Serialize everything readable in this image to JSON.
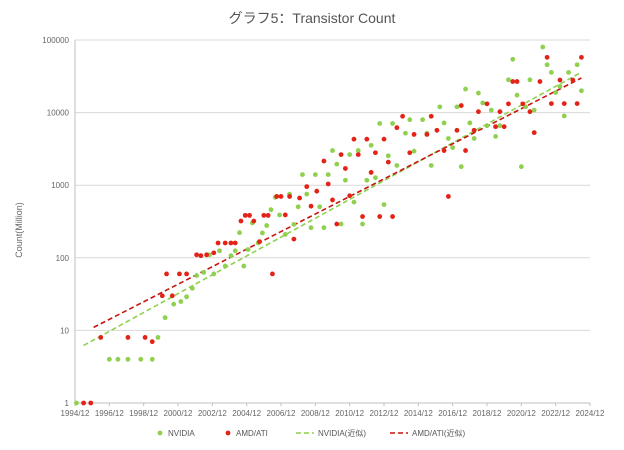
{
  "chart_data": {
    "type": "scatter",
    "title": "グラフ5：Transistor Count",
    "xlabel": "",
    "ylabel": "Count(Million)",
    "y_scale": "log",
    "ylim": [
      1,
      100000
    ],
    "xlim": [
      "1994/12",
      "2024/12"
    ],
    "x_ticks": [
      "1994/12",
      "1996/12",
      "1998/12",
      "2000/12",
      "2002/12",
      "2004/12",
      "2006/12",
      "2008/12",
      "2010/12",
      "2012/12",
      "2014/12",
      "2016/12",
      "2018/12",
      "2020/12",
      "2022/12",
      "2024/12"
    ],
    "y_ticks": [
      "1",
      "10",
      "100",
      "1000",
      "10000",
      "100000"
    ],
    "grid": "y-major",
    "legend_position": "bottom",
    "series": [
      {
        "name": "NVIDIA",
        "kind": "scatter",
        "color": "#8fd14f",
        "points": [
          [
            "1995/01",
            1
          ],
          [
            "1996/12",
            4
          ],
          [
            "1997/06",
            4
          ],
          [
            "1998/01",
            4
          ],
          [
            "1998/10",
            4
          ],
          [
            "1999/06",
            4
          ],
          [
            "1999/10",
            8
          ],
          [
            "2000/03",
            15
          ],
          [
            "2000/09",
            23
          ],
          [
            "2001/02",
            25
          ],
          [
            "2001/06",
            29
          ],
          [
            "2001/10",
            38
          ],
          [
            "2002/01",
            57
          ],
          [
            "2002/06",
            63
          ],
          [
            "2002/10",
            110
          ],
          [
            "2003/01",
            60
          ],
          [
            "2003/05",
            125
          ],
          [
            "2003/09",
            77
          ],
          [
            "2004/01",
            107
          ],
          [
            "2004/04",
            125
          ],
          [
            "2004/07",
            222
          ],
          [
            "2004/10",
            77
          ],
          [
            "2005/01",
            130
          ],
          [
            "2005/04",
            302
          ],
          [
            "2005/08",
            160
          ],
          [
            "2005/11",
            220
          ],
          [
            "2006/02",
            278
          ],
          [
            "2006/05",
            460
          ],
          [
            "2006/08",
            681
          ],
          [
            "2006/11",
            389
          ],
          [
            "2007/03",
            210
          ],
          [
            "2007/06",
            754
          ],
          [
            "2007/09",
            289
          ],
          [
            "2007/12",
            505
          ],
          [
            "2008/03",
            1400
          ],
          [
            "2008/06",
            754
          ],
          [
            "2008/09",
            260
          ],
          [
            "2008/12",
            1400
          ],
          [
            "2009/03",
            505
          ],
          [
            "2009/06",
            260
          ],
          [
            "2009/09",
            1400
          ],
          [
            "2009/12",
            3000
          ],
          [
            "2010/03",
            1950
          ],
          [
            "2010/06",
            292
          ],
          [
            "2010/09",
            1170
          ],
          [
            "2010/12",
            2640
          ],
          [
            "2011/03",
            585
          ],
          [
            "2011/06",
            3000
          ],
          [
            "2011/09",
            292
          ],
          [
            "2011/12",
            1170
          ],
          [
            "2012/03",
            3540
          ],
          [
            "2012/06",
            1270
          ],
          [
            "2012/09",
            7080
          ],
          [
            "2012/12",
            540
          ],
          [
            "2013/03",
            2540
          ],
          [
            "2013/06",
            7080
          ],
          [
            "2013/09",
            1870
          ],
          [
            "2014/03",
            5200
          ],
          [
            "2014/06",
            8000
          ],
          [
            "2014/09",
            2940
          ],
          [
            "2015/03",
            8000
          ],
          [
            "2015/06",
            5200
          ],
          [
            "2015/09",
            1870
          ],
          [
            "2016/03",
            12000
          ],
          [
            "2016/06",
            7200
          ],
          [
            "2016/09",
            4400
          ],
          [
            "2016/12",
            3300
          ],
          [
            "2017/03",
            12000
          ],
          [
            "2017/06",
            1800
          ],
          [
            "2017/09",
            21100
          ],
          [
            "2017/12",
            7200
          ],
          [
            "2018/03",
            4400
          ],
          [
            "2018/06",
            18600
          ],
          [
            "2018/09",
            13600
          ],
          [
            "2018/12",
            6600
          ],
          [
            "2019/03",
            10800
          ],
          [
            "2019/06",
            4700
          ],
          [
            "2019/09",
            6600
          ],
          [
            "2020/03",
            28300
          ],
          [
            "2020/06",
            54200
          ],
          [
            "2020/09",
            17400
          ],
          [
            "2020/12",
            1800
          ],
          [
            "2021/03",
            12000
          ],
          [
            "2021/06",
            28300
          ],
          [
            "2021/09",
            10800
          ],
          [
            "2022/03",
            80000
          ],
          [
            "2022/06",
            45600
          ],
          [
            "2022/09",
            35800
          ],
          [
            "2022/12",
            18900
          ],
          [
            "2023/03",
            22900
          ],
          [
            "2023/06",
            9000
          ],
          [
            "2023/09",
            35800
          ],
          [
            "2024/03",
            45600
          ],
          [
            "2024/06",
            20000
          ]
        ]
      },
      {
        "name": "AMD/ATI",
        "kind": "scatter",
        "color": "#e32218",
        "points": [
          [
            "1995/06",
            1
          ],
          [
            "1995/11",
            1
          ],
          [
            "1996/06",
            8
          ],
          [
            "1998/01",
            8
          ],
          [
            "1999/01",
            8
          ],
          [
            "1999/06",
            7
          ],
          [
            "2000/01",
            30
          ],
          [
            "2000/04",
            60
          ],
          [
            "2000/08",
            30
          ],
          [
            "2001/01",
            60
          ],
          [
            "2001/06",
            60
          ],
          [
            "2002/01",
            110
          ],
          [
            "2002/04",
            107
          ],
          [
            "2002/08",
            110
          ],
          [
            "2003/01",
            117
          ],
          [
            "2003/04",
            160
          ],
          [
            "2003/09",
            160
          ],
          [
            "2004/01",
            160
          ],
          [
            "2004/04",
            160
          ],
          [
            "2004/08",
            321
          ],
          [
            "2004/11",
            384
          ],
          [
            "2005/02",
            384
          ],
          [
            "2005/05",
            321
          ],
          [
            "2005/09",
            167
          ],
          [
            "2005/12",
            384
          ],
          [
            "2006/03",
            384
          ],
          [
            "2006/06",
            60
          ],
          [
            "2006/09",
            700
          ],
          [
            "2006/12",
            700
          ],
          [
            "2007/03",
            390
          ],
          [
            "2007/06",
            700
          ],
          [
            "2007/09",
            181
          ],
          [
            "2008/01",
            666
          ],
          [
            "2008/06",
            956
          ],
          [
            "2008/09",
            514
          ],
          [
            "2009/01",
            827
          ],
          [
            "2009/06",
            2150
          ],
          [
            "2009/09",
            1040
          ],
          [
            "2009/12",
            627
          ],
          [
            "2010/03",
            292
          ],
          [
            "2010/06",
            2640
          ],
          [
            "2010/09",
            1700
          ],
          [
            "2010/12",
            716
          ],
          [
            "2011/03",
            4310
          ],
          [
            "2011/06",
            2640
          ],
          [
            "2011/09",
            370
          ],
          [
            "2011/12",
            4310
          ],
          [
            "2012/03",
            1500
          ],
          [
            "2012/06",
            2800
          ],
          [
            "2012/09",
            370
          ],
          [
            "2012/12",
            4310
          ],
          [
            "2013/03",
            2080
          ],
          [
            "2013/06",
            370
          ],
          [
            "2013/09",
            6200
          ],
          [
            "2014/01",
            8900
          ],
          [
            "2014/06",
            2800
          ],
          [
            "2014/09",
            5000
          ],
          [
            "2015/06",
            5000
          ],
          [
            "2015/09",
            8900
          ],
          [
            "2016/01",
            5700
          ],
          [
            "2016/06",
            3000
          ],
          [
            "2016/09",
            700
          ],
          [
            "2017/03",
            5700
          ],
          [
            "2017/06",
            12500
          ],
          [
            "2017/09",
            3000
          ],
          [
            "2018/03",
            5700
          ],
          [
            "2018/06",
            10300
          ],
          [
            "2018/12",
            13200
          ],
          [
            "2019/06",
            6400
          ],
          [
            "2019/09",
            10300
          ],
          [
            "2019/12",
            6400
          ],
          [
            "2020/03",
            13200
          ],
          [
            "2020/06",
            26800
          ],
          [
            "2020/09",
            26800
          ],
          [
            "2021/01",
            13200
          ],
          [
            "2021/06",
            10300
          ],
          [
            "2021/09",
            5300
          ],
          [
            "2022/01",
            26800
          ],
          [
            "2022/06",
            57700
          ],
          [
            "2022/09",
            13300
          ],
          [
            "2023/03",
            28100
          ],
          [
            "2023/06",
            13300
          ],
          [
            "2023/12",
            28100
          ],
          [
            "2024/03",
            13300
          ],
          [
            "2024/06",
            57700
          ]
        ]
      },
      {
        "name": "NVIDIA(近似)",
        "kind": "trendline",
        "color": "#8fd14f",
        "points": [
          [
            "1995/06",
            6.2
          ],
          [
            "2024/06",
            36000
          ]
        ]
      },
      {
        "name": "AMD/ATI(近似)",
        "kind": "trendline",
        "color": "#c8140f",
        "points": [
          [
            "1996/01",
            11
          ],
          [
            "2024/06",
            30000
          ]
        ]
      }
    ]
  }
}
